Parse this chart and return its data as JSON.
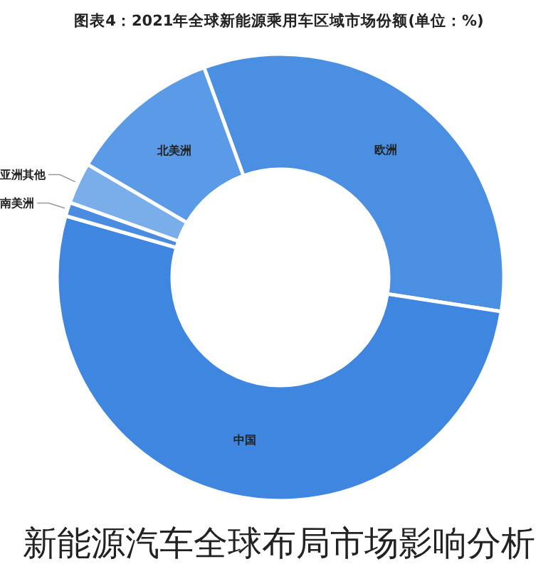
{
  "chart_data": {
    "type": "donut",
    "title": "图表4：2021年全球新能源乘用车区域市场份额(单位：%)",
    "categories": [
      "欧洲",
      "中国",
      "南美洲",
      "亚洲其他",
      "北美洲"
    ],
    "values": [
      33,
      52,
      1,
      3,
      11
    ],
    "colors": [
      "#4a8fe2",
      "#3f86e0",
      "#4a8ce0",
      "#7aaeea",
      "#5b9ae6"
    ],
    "annotations": [
      "新能源汽车全球布局市场影响分析"
    ]
  }
}
